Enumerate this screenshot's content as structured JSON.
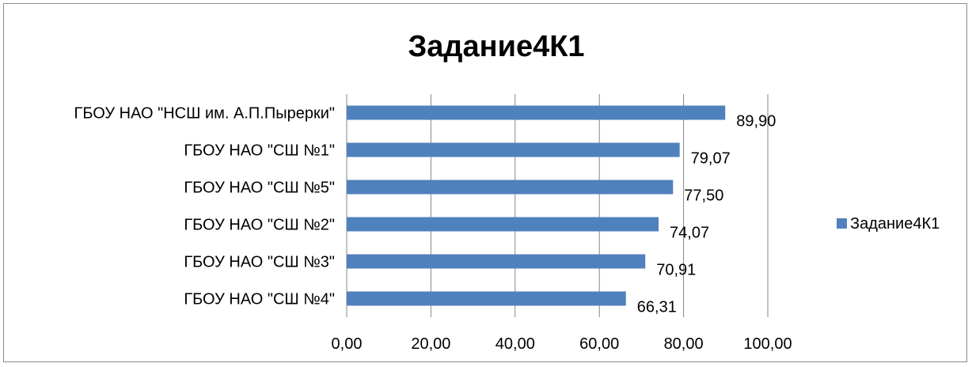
{
  "chart_data": {
    "type": "bar",
    "orientation": "horizontal",
    "title": "Задание4К1",
    "categories": [
      "ГБОУ НАО \"НСШ им. А.П.Пырерки\"",
      "ГБОУ НАО \"СШ №1\"",
      "ГБОУ НАО \"СШ №5\"",
      "ГБОУ НАО \"СШ №2\"",
      "ГБОУ НАО \"СШ №3\"",
      "ГБОУ НАО \"СШ №4\""
    ],
    "series": [
      {
        "name": "Задание4К1",
        "values": [
          89.9,
          79.07,
          77.5,
          74.07,
          70.91,
          66.31
        ],
        "labels": [
          "89,90",
          "79,07",
          "77,50",
          "74,07",
          "70,91",
          "66,31"
        ]
      }
    ],
    "xlim": [
      0,
      100
    ],
    "x_ticks": [
      "0,00",
      "20,00",
      "40,00",
      "60,00",
      "80,00",
      "100,00"
    ],
    "grid": "vertical",
    "legend_position": "right",
    "colors": {
      "bar": "#4f81bd",
      "grid": "#868686",
      "border": "#8c8c8c"
    }
  }
}
